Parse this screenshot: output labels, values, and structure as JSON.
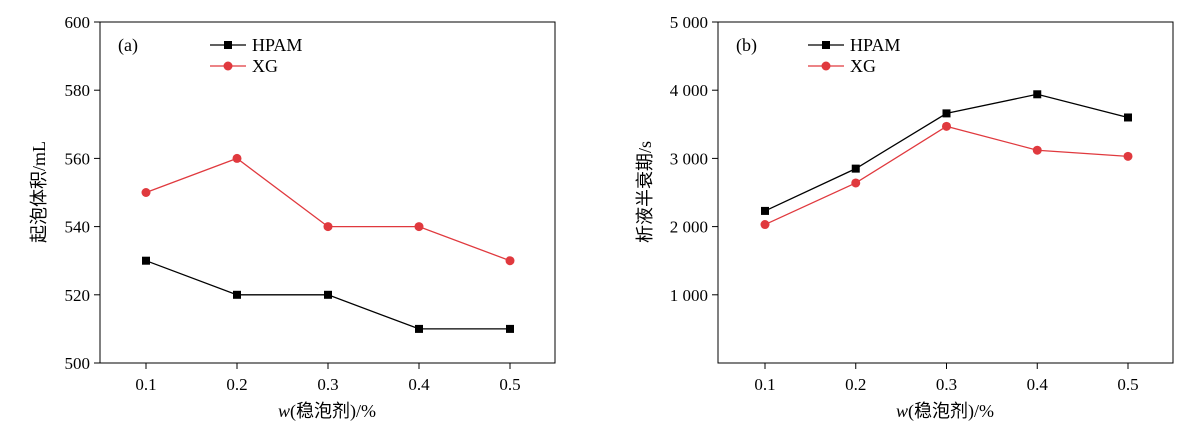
{
  "chart_data": [
    {
      "type": "line",
      "panel_label": "(a)",
      "categories": [
        "0.1",
        "0.2",
        "0.3",
        "0.4",
        "0.5"
      ],
      "x": [
        0.1,
        0.2,
        0.3,
        0.4,
        0.5
      ],
      "series": [
        {
          "name": "HPAM",
          "values": [
            530,
            520,
            520,
            510,
            510
          ],
          "color": "#000000",
          "marker": "square"
        },
        {
          "name": "XG",
          "values": [
            550,
            560,
            540,
            540,
            530
          ],
          "color": "#e0393e",
          "marker": "circle"
        }
      ],
      "xlabel_italic": "w",
      "xlabel_rest": "(稳泡剂)/%",
      "ylabel": "起泡体积/mL",
      "ylim": [
        500,
        600
      ],
      "yticks": [
        500,
        520,
        540,
        560,
        580,
        600
      ],
      "ytick_labels": [
        "500",
        "520",
        "540",
        "560",
        "580",
        "600"
      ],
      "grid": false,
      "legend_position": "top"
    },
    {
      "type": "line",
      "panel_label": "(b)",
      "categories": [
        "0.1",
        "0.2",
        "0.3",
        "0.4",
        "0.5"
      ],
      "x": [
        0.1,
        0.2,
        0.3,
        0.4,
        0.5
      ],
      "series": [
        {
          "name": "HPAM",
          "values": [
            2230,
            2850,
            3660,
            3940,
            3600
          ],
          "color": "#000000",
          "marker": "square"
        },
        {
          "name": "XG",
          "values": [
            2030,
            2640,
            3470,
            3120,
            3030
          ],
          "color": "#e0393e",
          "marker": "circle"
        }
      ],
      "xlabel_italic": "w",
      "xlabel_rest": "(稳泡剂)/%",
      "ylabel": "析液半衰期/s",
      "ylim": [
        0,
        5000
      ],
      "yticks": [
        1000,
        2000,
        3000,
        4000,
        5000
      ],
      "ytick_labels": [
        "1 000",
        "2 000",
        "3 000",
        "4 000",
        "5 000"
      ],
      "grid": false,
      "legend_position": "top"
    }
  ]
}
